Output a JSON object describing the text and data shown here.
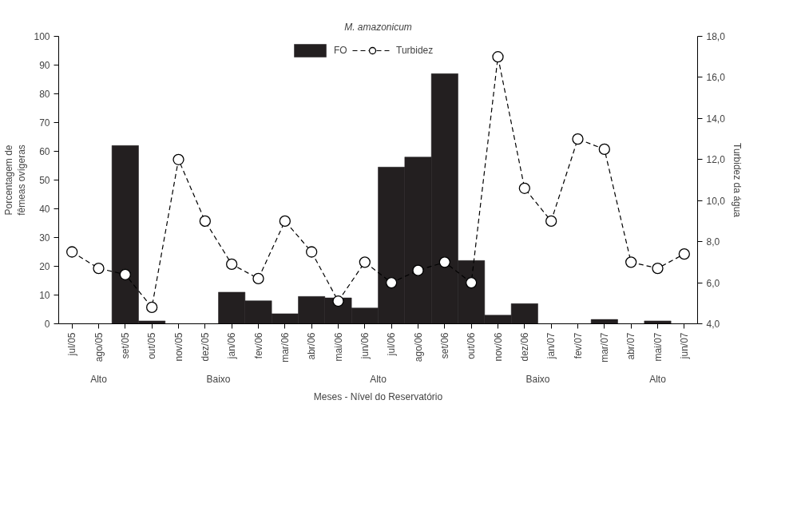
{
  "chart_data": {
    "type": "bar",
    "title": "M. amazonicum",
    "xlabel": "Meses - Nível do Reservatório",
    "ylabel": "Porcentagem de\nfêmeas ovígeras",
    "y2label": "Turbidez da água",
    "categories": [
      "jul/05",
      "ago/05",
      "set/05",
      "out/05",
      "nov/05",
      "dez/05",
      "jan/06",
      "fev/06",
      "mar/06",
      "abr/06",
      "mai/06",
      "jun/06",
      "jul/06",
      "ago/06",
      "set/06",
      "out/06",
      "nov/06",
      "dez/06",
      "jan/07",
      "fev/07",
      "mar/07",
      "abr/07",
      "mai/07",
      "jun/07"
    ],
    "series": [
      {
        "name": "FO",
        "color": "#231f20",
        "values": [
          0,
          0,
          62,
          1,
          0,
          0,
          11,
          8,
          3.5,
          9.5,
          9,
          5.5,
          54.5,
          58,
          87,
          22,
          3,
          7,
          0,
          0,
          1.5,
          0,
          1,
          0
        ]
      },
      {
        "name": "Turbidez",
        "type": "line",
        "axis": "y2",
        "color": "#000000",
        "marker": "circle",
        "line_style": "dashed",
        "values": [
          7.5,
          6.7,
          6.4,
          4.8,
          12.0,
          9.0,
          6.9,
          6.2,
          9.0,
          7.5,
          5.1,
          7.0,
          6.0,
          6.6,
          7.0,
          6.0,
          17.0,
          10.6,
          9.0,
          13.0,
          12.5,
          7.0,
          6.7,
          7.4
        ]
      }
    ],
    "ylim": [
      0,
      100
    ],
    "yticks": [
      0,
      10,
      20,
      30,
      40,
      50,
      60,
      70,
      80,
      90,
      100
    ],
    "y2lim": [
      4,
      18
    ],
    "y2ticks": [
      {
        "value": 4,
        "label": "4,0"
      },
      {
        "value": 6,
        "label": "6,0"
      },
      {
        "value": 8,
        "label": "8,0"
      },
      {
        "value": 10,
        "label": "10,0"
      },
      {
        "value": 12,
        "label": "12,0"
      },
      {
        "value": 14,
        "label": "14,0"
      },
      {
        "value": 16,
        "label": "16,0"
      },
      {
        "value": 18,
        "label": "18,0"
      }
    ],
    "annotations": [
      "Alto",
      "Baixo",
      "Alto",
      "Baixo",
      "Alto"
    ],
    "legend": "top",
    "grid": false
  }
}
